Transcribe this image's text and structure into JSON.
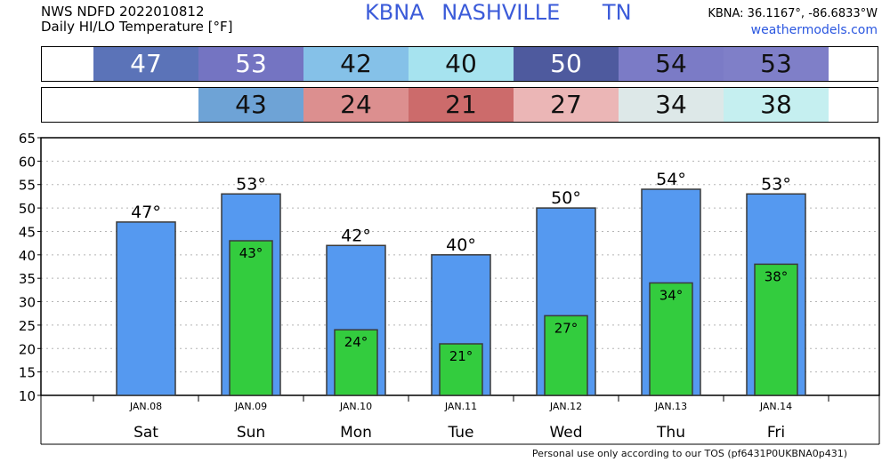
{
  "header": {
    "line1": "NWS NDFD 2022010812",
    "line2": "Daily HI/LO Temperature [°F]",
    "station": "KBNA",
    "city": "NASHVILLE",
    "state": "TN",
    "coords": "KBNA: 36.1167°, -86.6833°W",
    "site": "weathermodels.com"
  },
  "high_strip": [
    {
      "value": "47",
      "color": "#5b73b8",
      "text_light": true
    },
    {
      "value": "53",
      "color": "#7474c2",
      "text_light": true
    },
    {
      "value": "42",
      "color": "#85c1e8",
      "text_light": false
    },
    {
      "value": "40",
      "color": "#a6e3ef",
      "text_light": false
    },
    {
      "value": "50",
      "color": "#4e5a9e",
      "text_light": true
    },
    {
      "value": "54",
      "color": "#7b7bc6",
      "text_light": false
    },
    {
      "value": "53",
      "color": "#7f7fc8",
      "text_light": false
    }
  ],
  "low_strip": [
    {
      "value": "43",
      "color": "#6ea3d6",
      "text_light": false
    },
    {
      "value": "24",
      "color": "#dc8f8f",
      "text_light": false
    },
    {
      "value": "21",
      "color": "#cc6b6b",
      "text_light": false
    },
    {
      "value": "27",
      "color": "#ebb6b6",
      "text_light": false
    },
    {
      "value": "34",
      "color": "#dde8e8",
      "text_light": false
    },
    {
      "value": "38",
      "color": "#c5eff0",
      "text_light": false
    }
  ],
  "chart_data": {
    "type": "bar",
    "categories": [
      "Sat",
      "Sun",
      "Mon",
      "Tue",
      "Wed",
      "Thu",
      "Fri"
    ],
    "dates": [
      "JAN.08",
      "JAN.09",
      "JAN.10",
      "JAN.11",
      "JAN.12",
      "JAN.13",
      "JAN.14"
    ],
    "series": [
      {
        "values": [
          47,
          53,
          42,
          40,
          50,
          54,
          53
        ],
        "color": "#5599f0"
      },
      {
        "values": [
          null,
          43,
          24,
          21,
          27,
          34,
          38
        ],
        "color": "#33cc3e"
      }
    ],
    "high_labels": [
      "47°",
      "53°",
      "42°",
      "40°",
      "50°",
      "54°",
      "53°"
    ],
    "low_labels": [
      "",
      "43°",
      "24°",
      "21°",
      "27°",
      "34°",
      "38°"
    ],
    "yticks": [
      "10",
      "15",
      "20",
      "25",
      "30",
      "35",
      "40",
      "45",
      "50",
      "55",
      "60",
      "65"
    ],
    "ylim": [
      10,
      65
    ],
    "grid": true
  },
  "footer": {
    "tos": "Personal use only according to our TOS (pf6431P0UKBNA0p431)"
  }
}
